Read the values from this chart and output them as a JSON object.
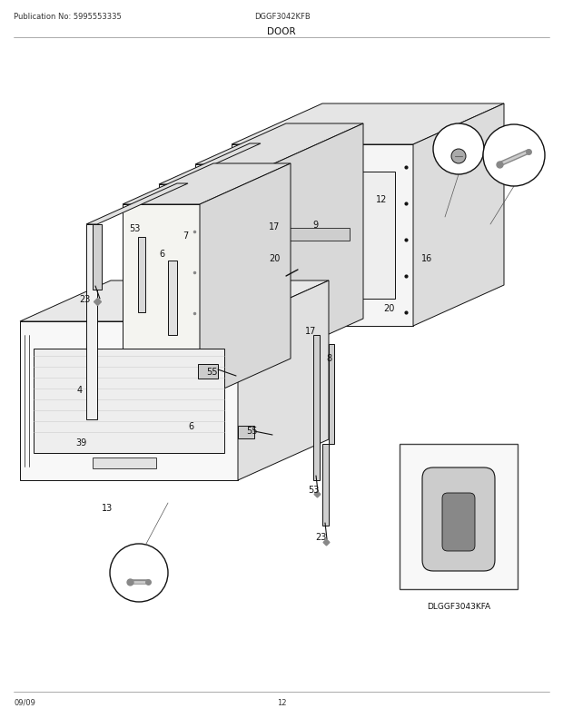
{
  "title": "DOOR",
  "pub_no": "Publication No: 5995553335",
  "model": "DGGF3042KFB",
  "date": "09/09",
  "page": "12",
  "bg_color": "#ffffff",
  "fig_width": 6.2,
  "fig_height": 8.03,
  "dpi": 100,
  "lc": "#111111",
  "lw": 0.7
}
